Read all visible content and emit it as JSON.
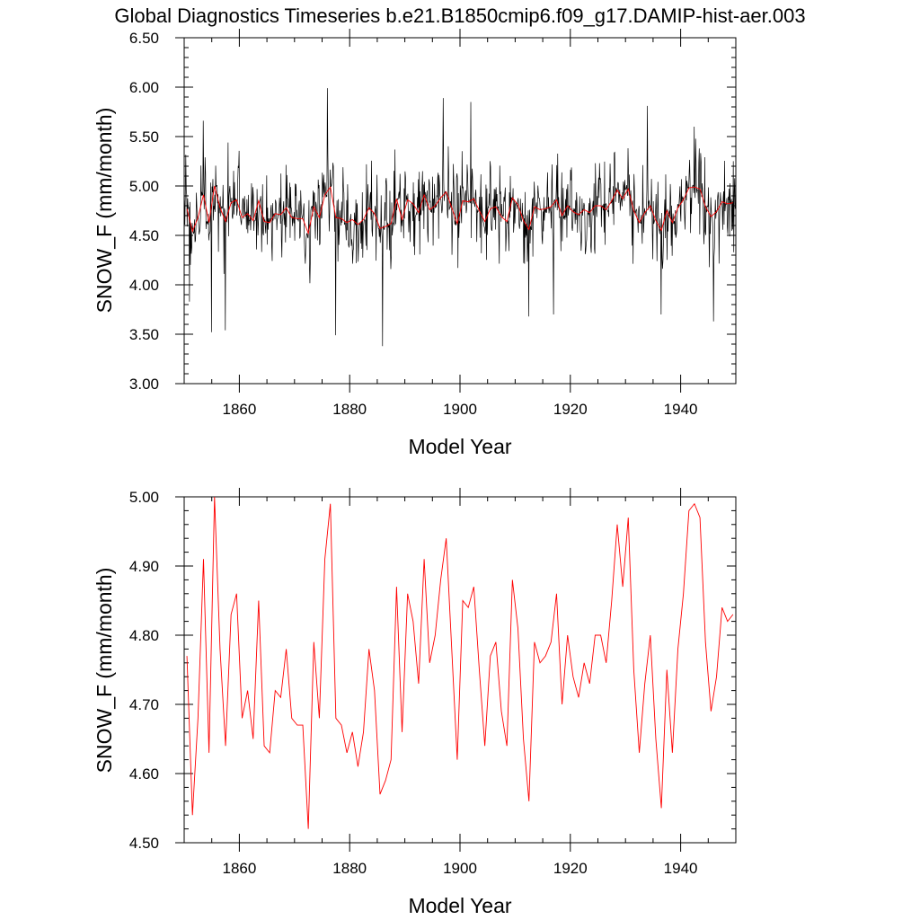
{
  "page_title": "Global Diagnostics Timeseries b.e21.B1850cmip6.f09_g17.DAMIP-hist-aer.003",
  "colors": {
    "monthly": "#000000",
    "annual": "#ff0000",
    "background": "#ffffff"
  },
  "chart_data": [
    {
      "type": "line",
      "title": "Global Diagnostics Timeseries b.e21.B1850cmip6.f09_g17.DAMIP-hist-aer.003",
      "xlabel": "Model Year",
      "ylabel": "SNOW_F (mm/month)",
      "xlim": [
        1850,
        1950
      ],
      "ylim": [
        3.0,
        6.5
      ],
      "x_ticks": [
        1860,
        1880,
        1900,
        1920,
        1940
      ],
      "y_ticks": [
        "3.00",
        "3.50",
        "4.00",
        "4.50",
        "5.00",
        "5.50",
        "6.00",
        "6.50"
      ],
      "grid": false,
      "series": [
        {
          "kind": "monthly",
          "color": "#000000",
          "peaks": [
            [
              1853.5,
              5.66
            ],
            [
              1858.0,
              5.44
            ],
            [
              1876.0,
              5.99
            ],
            [
              1897.0,
              5.89
            ],
            [
              1902.0,
              5.85
            ],
            [
              1934.0,
              5.81
            ],
            [
              1942.5,
              5.6
            ]
          ],
          "troughs": [
            [
              1851.0,
              3.83
            ],
            [
              1855.0,
              3.52
            ],
            [
              1857.5,
              3.54
            ],
            [
              1877.5,
              3.49
            ],
            [
              1886.0,
              3.38
            ],
            [
              1912.5,
              3.68
            ],
            [
              1917.0,
              3.7
            ],
            [
              1936.5,
              3.7
            ],
            [
              1946.0,
              3.63
            ]
          ]
        },
        {
          "kind": "annual",
          "color": "#ff0000",
          "x": [
            1850.5,
            1851.5,
            1852.5,
            1853.5,
            1854.5,
            1855.5,
            1856.5,
            1857.5,
            1858.5,
            1859.5,
            1860.5,
            1861.5,
            1862.5,
            1863.5,
            1864.5,
            1865.5,
            1866.5,
            1867.5,
            1868.5,
            1869.5,
            1870.5,
            1871.5,
            1872.5,
            1873.5,
            1874.5,
            1875.5,
            1876.5,
            1877.5,
            1878.5,
            1879.5,
            1880.5,
            1881.5,
            1882.5,
            1883.5,
            1884.5,
            1885.5,
            1886.5,
            1887.5,
            1888.5,
            1889.5,
            1890.5,
            1891.5,
            1892.5,
            1893.5,
            1894.5,
            1895.5,
            1896.5,
            1897.5,
            1898.5,
            1899.5,
            1900.5,
            1901.5,
            1902.5,
            1903.5,
            1904.5,
            1905.5,
            1906.5,
            1907.5,
            1908.5,
            1909.5,
            1910.5,
            1911.5,
            1912.5,
            1913.5,
            1914.5,
            1915.5,
            1916.5,
            1917.5,
            1918.5,
            1919.5,
            1920.5,
            1921.5,
            1922.5,
            1923.5,
            1924.5,
            1925.5,
            1926.5,
            1927.5,
            1928.5,
            1929.5,
            1930.5,
            1931.5,
            1932.5,
            1933.5,
            1934.5,
            1935.5,
            1936.5,
            1937.5,
            1938.5,
            1939.5,
            1940.5,
            1941.5,
            1942.5,
            1943.5,
            1944.5,
            1945.5,
            1946.5,
            1947.5,
            1948.5,
            1949.5
          ],
          "values": [
            4.77,
            4.54,
            4.68,
            4.91,
            4.63,
            5.0,
            4.78,
            4.64,
            4.83,
            4.86,
            4.68,
            4.72,
            4.65,
            4.85,
            4.64,
            4.63,
            4.72,
            4.71,
            4.78,
            4.68,
            4.67,
            4.67,
            4.52,
            4.79,
            4.68,
            4.91,
            4.99,
            4.68,
            4.67,
            4.63,
            4.66,
            4.61,
            4.66,
            4.78,
            4.72,
            4.57,
            4.59,
            4.62,
            4.87,
            4.66,
            4.86,
            4.82,
            4.73,
            4.91,
            4.76,
            4.8,
            4.88,
            4.94,
            4.78,
            4.62,
            4.85,
            4.84,
            4.87,
            4.75,
            4.64,
            4.77,
            4.79,
            4.69,
            4.64,
            4.88,
            4.81,
            4.65,
            4.56,
            4.79,
            4.76,
            4.77,
            4.79,
            4.86,
            4.7,
            4.8,
            4.74,
            4.71,
            4.76,
            4.73,
            4.8,
            4.8,
            4.76,
            4.85,
            4.96,
            4.87,
            4.97,
            4.75,
            4.63,
            4.73,
            4.8,
            4.65,
            4.55,
            4.75,
            4.63,
            4.78,
            4.86,
            4.98,
            4.99,
            4.97,
            4.79,
            4.69,
            4.74,
            4.84,
            4.82,
            4.83
          ]
        }
      ]
    },
    {
      "type": "line",
      "title": "",
      "xlabel": "Model Year",
      "ylabel": "SNOW_F (mm/month)",
      "xlim": [
        1850,
        1950
      ],
      "ylim": [
        4.5,
        5.0
      ],
      "x_ticks": [
        1860,
        1880,
        1900,
        1920,
        1940
      ],
      "y_ticks": [
        "4.50",
        "4.60",
        "4.70",
        "4.80",
        "4.90",
        "5.00"
      ],
      "grid": false,
      "series": [
        {
          "kind": "annual",
          "color": "#ff0000",
          "ref": "annual"
        }
      ]
    }
  ]
}
